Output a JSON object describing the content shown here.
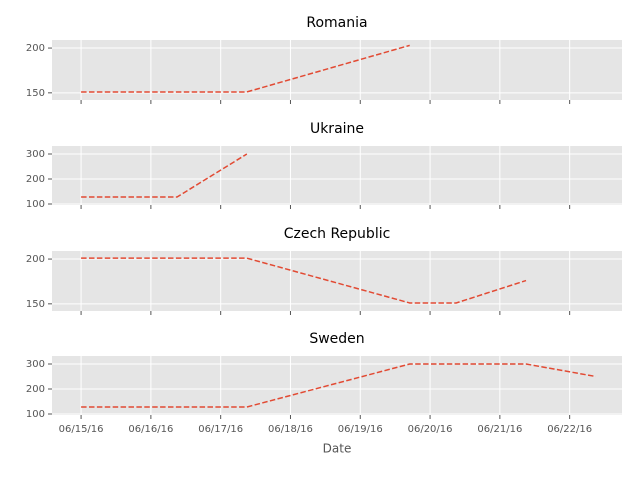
{
  "chart_data": [
    {
      "type": "line",
      "title": "Romania",
      "x": [
        "2016-06-15T00:00",
        "2016-06-17T09:00",
        "2016-06-19T17:00"
      ],
      "series": [
        {
          "color": "#e24a33",
          "values": [
            151,
            151,
            203
          ]
        }
      ],
      "xlim": [
        "2016-06-14T14:00",
        "2016-06-22T18:00"
      ],
      "ylim": [
        142,
        209
      ],
      "yticks": [
        150,
        200
      ],
      "grid": true
    },
    {
      "type": "line",
      "title": "Ukraine",
      "x": [
        "2016-06-15T00:00",
        "2016-06-16T09:00",
        "2016-06-17T09:00"
      ],
      "series": [
        {
          "color": "#e24a33",
          "values": [
            128,
            128,
            300
          ]
        }
      ],
      "xlim": [
        "2016-06-14T14:00",
        "2016-06-22T18:00"
      ],
      "ylim": [
        96,
        332
      ],
      "yticks": [
        100,
        200,
        300
      ],
      "grid": true
    },
    {
      "type": "line",
      "title": "Czech Republic",
      "x": [
        "2016-06-15T00:00",
        "2016-06-17T09:00",
        "2016-06-19T17:00",
        "2016-06-20T09:00",
        "2016-06-21T09:00"
      ],
      "series": [
        {
          "color": "#e24a33",
          "values": [
            201,
            201,
            151,
            151,
            176
          ]
        }
      ],
      "xlim": [
        "2016-06-14T14:00",
        "2016-06-22T18:00"
      ],
      "ylim": [
        142,
        209
      ],
      "yticks": [
        150,
        200
      ],
      "grid": true
    },
    {
      "type": "line",
      "title": "Sweden",
      "xlabel": "Date",
      "x": [
        "2016-06-15T00:00",
        "2016-06-17T09:00",
        "2016-06-19T17:00",
        "2016-06-21T09:00",
        "2016-06-22T09:00"
      ],
      "series": [
        {
          "color": "#e24a33",
          "values": [
            128,
            128,
            300,
            300,
            250
          ]
        }
      ],
      "xlim": [
        "2016-06-14T14:00",
        "2016-06-22T18:00"
      ],
      "ylim": [
        96,
        332
      ],
      "yticks": [
        100,
        200,
        300
      ],
      "grid": true,
      "xticks": [
        {
          "value": "2016-06-15",
          "label": "06/15/16"
        },
        {
          "value": "2016-06-16",
          "label": "06/16/16"
        },
        {
          "value": "2016-06-17",
          "label": "06/17/16"
        },
        {
          "value": "2016-06-18",
          "label": "06/18/16"
        },
        {
          "value": "2016-06-19",
          "label": "06/19/16"
        },
        {
          "value": "2016-06-20",
          "label": "06/20/16"
        },
        {
          "value": "2016-06-21",
          "label": "06/21/16"
        },
        {
          "value": "2016-06-22",
          "label": "06/22/16"
        }
      ]
    }
  ]
}
